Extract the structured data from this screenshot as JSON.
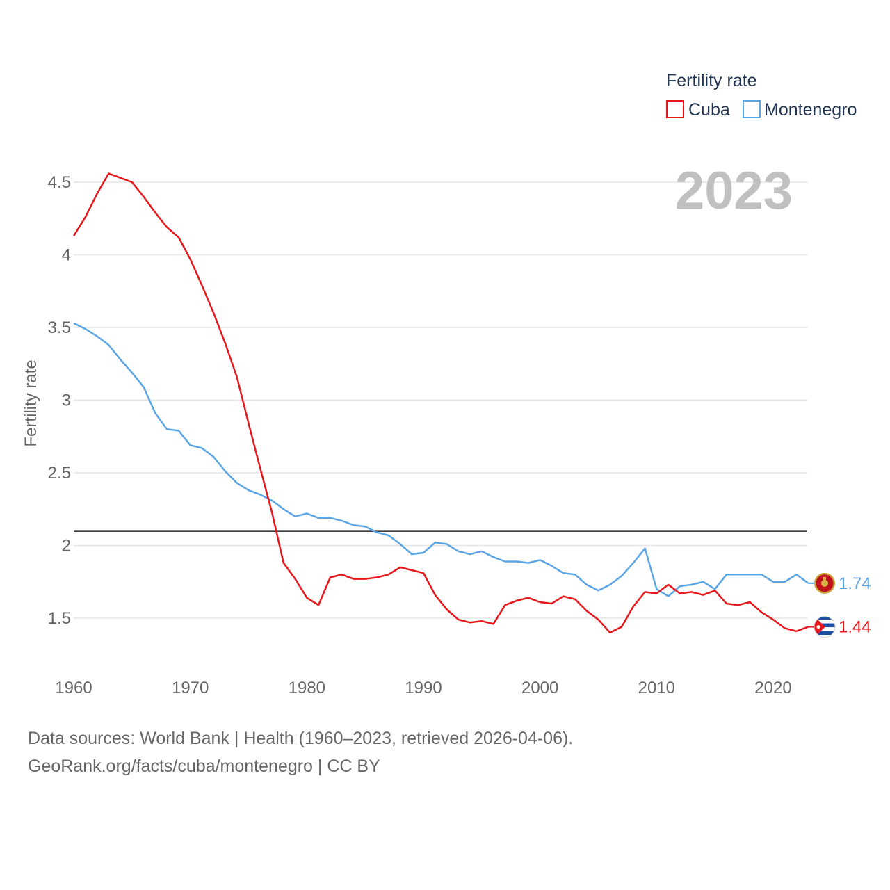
{
  "chart_data": {
    "type": "line",
    "title": "Fertility rate",
    "ylabel": "Fertility rate",
    "xlabel": "",
    "year_label": "2023",
    "xlim": [
      1960,
      2023
    ],
    "ylim": [
      1.2,
      4.7
    ],
    "x_ticks": [
      1960,
      1970,
      1980,
      1990,
      2000,
      2010,
      2020
    ],
    "y_ticks": [
      1.5,
      2,
      2.5,
      3,
      3.5,
      4,
      4.5
    ],
    "y_tick_labels": [
      "1.5",
      "2",
      "2.5",
      "3",
      "3.5",
      "4",
      "4.5"
    ],
    "x_tick_labels": [
      "1960",
      "1970",
      "1980",
      "1990",
      "2000",
      "2010",
      "2020"
    ],
    "reference_line": 2.1,
    "legend": {
      "title": "Fertility rate",
      "position": "top-right"
    },
    "x": [
      1960,
      1961,
      1962,
      1963,
      1964,
      1965,
      1966,
      1967,
      1968,
      1969,
      1970,
      1971,
      1972,
      1973,
      1974,
      1975,
      1976,
      1977,
      1978,
      1979,
      1980,
      1981,
      1982,
      1983,
      1984,
      1985,
      1986,
      1987,
      1988,
      1989,
      1990,
      1991,
      1992,
      1993,
      1994,
      1995,
      1996,
      1997,
      1998,
      1999,
      2000,
      2001,
      2002,
      2003,
      2004,
      2005,
      2006,
      2007,
      2008,
      2009,
      2010,
      2011,
      2012,
      2013,
      2014,
      2015,
      2016,
      2017,
      2018,
      2019,
      2020,
      2021,
      2022,
      2023
    ],
    "series": [
      {
        "name": "Cuba",
        "color": "#e8161b",
        "end_label": "1.44",
        "flag": "cuba-flag-icon",
        "values": [
          4.13,
          4.26,
          4.42,
          4.56,
          4.53,
          4.5,
          4.4,
          4.29,
          4.19,
          4.12,
          3.97,
          3.79,
          3.6,
          3.39,
          3.16,
          2.84,
          2.53,
          2.23,
          1.88,
          1.77,
          1.64,
          1.59,
          1.78,
          1.8,
          1.77,
          1.77,
          1.78,
          1.8,
          1.85,
          1.83,
          1.81,
          1.66,
          1.56,
          1.49,
          1.47,
          1.48,
          1.46,
          1.59,
          1.62,
          1.64,
          1.61,
          1.6,
          1.65,
          1.63,
          1.55,
          1.49,
          1.4,
          1.44,
          1.58,
          1.68,
          1.67,
          1.73,
          1.67,
          1.68,
          1.66,
          1.69,
          1.6,
          1.59,
          1.61,
          1.54,
          1.49,
          1.43,
          1.41,
          1.44
        ]
      },
      {
        "name": "Montenegro",
        "color": "#5ba5e5",
        "end_label": "1.74",
        "flag": "montenegro-flag-icon",
        "values": [
          3.53,
          3.49,
          3.44,
          3.38,
          3.28,
          3.19,
          3.09,
          2.91,
          2.8,
          2.79,
          2.69,
          2.67,
          2.61,
          2.51,
          2.43,
          2.38,
          2.35,
          2.31,
          2.25,
          2.2,
          2.22,
          2.19,
          2.19,
          2.17,
          2.14,
          2.13,
          2.09,
          2.07,
          2.01,
          1.94,
          1.95,
          2.02,
          2.01,
          1.96,
          1.94,
          1.96,
          1.92,
          1.89,
          1.89,
          1.88,
          1.9,
          1.86,
          1.81,
          1.8,
          1.73,
          1.69,
          1.73,
          1.79,
          1.88,
          1.98,
          1.7,
          1.65,
          1.72,
          1.73,
          1.75,
          1.7,
          1.8,
          1.8,
          1.8,
          1.8,
          1.75,
          1.75,
          1.8,
          1.74
        ]
      }
    ]
  },
  "footer": {
    "line1": "Data sources: World Bank | Health (1960–2023, retrieved 2026-04-06).",
    "line2": "GeoRank.org/facts/cuba/montenegro | CC BY"
  }
}
